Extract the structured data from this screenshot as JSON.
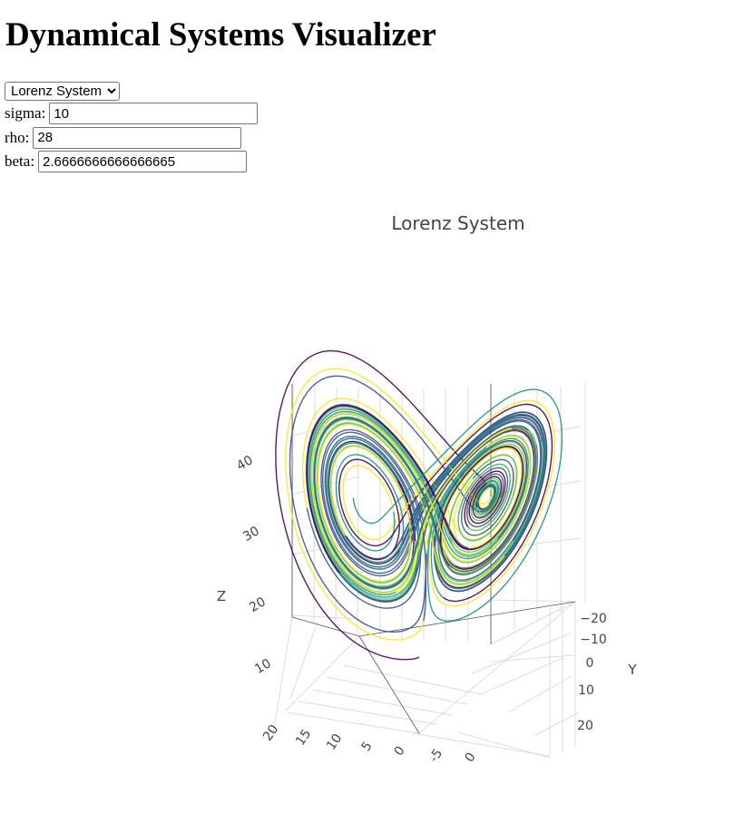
{
  "page": {
    "title": "Dynamical Systems Visualizer"
  },
  "controls": {
    "system_select": {
      "selected": "Lorenz System",
      "options": [
        "Lorenz System"
      ]
    },
    "params": [
      {
        "label": "sigma:",
        "value": "10"
      },
      {
        "label": "rho:",
        "value": "28"
      },
      {
        "label": "beta:",
        "value": "2.6666666666666665"
      }
    ]
  },
  "chart_data": {
    "type": "line",
    "subtype": "3d-trajectory",
    "title": "Lorenz System",
    "system": "Lorenz",
    "params": {
      "sigma": 10,
      "rho": 28,
      "beta": 2.6666666666666665
    },
    "axes": {
      "x": {
        "label": "",
        "tick_labels": [
          "20",
          "15",
          "10",
          "5",
          "0",
          "-5",
          "0"
        ]
      },
      "y": {
        "label": "Y",
        "tick_labels": [
          "−20",
          "−10",
          "0",
          "10",
          "20"
        ]
      },
      "z": {
        "label": "Z",
        "tick_labels": [
          "10",
          "20",
          "30",
          "40"
        ]
      }
    },
    "colorscale": "viridis",
    "colors": [
      "#440154",
      "#3b528b",
      "#21918c",
      "#5ec962",
      "#fde725"
    ],
    "grid": true
  }
}
